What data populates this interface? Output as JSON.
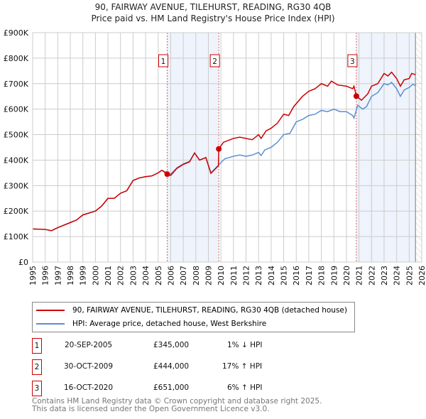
{
  "chart_data": {
    "type": "line",
    "title": "90, FAIRWAY AVENUE, TILEHURST, READING, RG30 4QB",
    "subtitle": "Price paid vs. HM Land Registry's House Price Index (HPI)",
    "xlim": [
      1995,
      2026
    ],
    "ylim": [
      0,
      900000
    ],
    "yticks": [
      {
        "v": 0,
        "label": "£0"
      },
      {
        "v": 100000,
        "label": "£100K"
      },
      {
        "v": 200000,
        "label": "£200K"
      },
      {
        "v": 300000,
        "label": "£300K"
      },
      {
        "v": 400000,
        "label": "£400K"
      },
      {
        "v": 500000,
        "label": "£500K"
      },
      {
        "v": 600000,
        "label": "£600K"
      },
      {
        "v": 700000,
        "label": "£700K"
      },
      {
        "v": 800000,
        "label": "£800K"
      },
      {
        "v": 900000,
        "label": "£900K"
      }
    ],
    "xticks": [
      "1995",
      "1996",
      "1997",
      "1998",
      "1999",
      "2000",
      "2001",
      "2002",
      "2003",
      "2004",
      "2005",
      "2006",
      "2007",
      "2008",
      "2009",
      "2010",
      "2011",
      "2012",
      "2013",
      "2014",
      "2015",
      "2016",
      "2017",
      "2018",
      "2019",
      "2020",
      "2021",
      "2022",
      "2023",
      "2024",
      "2025",
      "2026"
    ],
    "grid": true,
    "shaded_ranges": [
      [
        2005.72,
        2009.83
      ],
      [
        2020.79,
        2025.5
      ]
    ],
    "hatched_from": 2025.5,
    "series": [
      {
        "name": "90, FAIRWAY AVENUE, TILEHURST, READING, RG30 4QB (detached house)",
        "color": "#cc0000",
        "points": [
          [
            1995,
            130000
          ],
          [
            1996,
            128000
          ],
          [
            1996.5,
            123000
          ],
          [
            1997,
            135000
          ],
          [
            1998,
            155000
          ],
          [
            1998.5,
            165000
          ],
          [
            1999,
            185000
          ],
          [
            2000,
            200000
          ],
          [
            2000.5,
            220000
          ],
          [
            2001,
            250000
          ],
          [
            2001.5,
            250000
          ],
          [
            2002,
            270000
          ],
          [
            2002.5,
            280000
          ],
          [
            2003,
            320000
          ],
          [
            2003.5,
            330000
          ],
          [
            2004,
            335000
          ],
          [
            2004.5,
            338000
          ],
          [
            2005,
            350000
          ],
          [
            2005.3,
            360000
          ],
          [
            2005.72,
            345000
          ],
          [
            2006,
            340000
          ],
          [
            2006.5,
            368000
          ],
          [
            2007,
            383000
          ],
          [
            2007.5,
            393000
          ],
          [
            2007.9,
            428000
          ],
          [
            2008.3,
            400000
          ],
          [
            2008.8,
            410000
          ],
          [
            2009.2,
            348000
          ],
          [
            2009.8,
            378000
          ],
          [
            2009.83,
            444000
          ],
          [
            2010.2,
            470000
          ],
          [
            2011,
            485000
          ],
          [
            2011.5,
            490000
          ],
          [
            2012.5,
            480000
          ],
          [
            2013,
            500000
          ],
          [
            2013.2,
            485000
          ],
          [
            2013.6,
            515000
          ],
          [
            2014,
            525000
          ],
          [
            2014.5,
            545000
          ],
          [
            2015,
            580000
          ],
          [
            2015.4,
            575000
          ],
          [
            2015.8,
            610000
          ],
          [
            2016.5,
            650000
          ],
          [
            2017,
            670000
          ],
          [
            2017.5,
            680000
          ],
          [
            2018,
            700000
          ],
          [
            2018.5,
            690000
          ],
          [
            2018.8,
            710000
          ],
          [
            2019.3,
            695000
          ],
          [
            2020,
            690000
          ],
          [
            2020.5,
            680000
          ],
          [
            2020.6,
            690000
          ],
          [
            2020.79,
            651000
          ],
          [
            2021.2,
            635000
          ],
          [
            2021.7,
            660000
          ],
          [
            2022,
            690000
          ],
          [
            2022.5,
            700000
          ],
          [
            2023,
            740000
          ],
          [
            2023.3,
            730000
          ],
          [
            2023.6,
            745000
          ],
          [
            2024,
            720000
          ],
          [
            2024.3,
            690000
          ],
          [
            2024.6,
            715000
          ],
          [
            2025,
            720000
          ],
          [
            2025.2,
            740000
          ],
          [
            2025.5,
            735000
          ]
        ]
      },
      {
        "name": "HPI: Average price, detached house, West Berkshire",
        "color": "#5b8fd0",
        "points": [
          [
            1995,
            130000
          ],
          [
            1996,
            128000
          ],
          [
            1996.5,
            123000
          ],
          [
            1997,
            135000
          ],
          [
            1998,
            155000
          ],
          [
            1998.5,
            165000
          ],
          [
            1999,
            185000
          ],
          [
            2000,
            200000
          ],
          [
            2000.5,
            220000
          ],
          [
            2001,
            250000
          ],
          [
            2001.5,
            250000
          ],
          [
            2002,
            270000
          ],
          [
            2002.5,
            280000
          ],
          [
            2003,
            320000
          ],
          [
            2003.5,
            330000
          ],
          [
            2004,
            335000
          ],
          [
            2004.5,
            338000
          ],
          [
            2005,
            350000
          ],
          [
            2005.3,
            360000
          ],
          [
            2005.7,
            350000
          ],
          [
            2006,
            345000
          ],
          [
            2006.5,
            370000
          ],
          [
            2007,
            385000
          ],
          [
            2007.5,
            395000
          ],
          [
            2007.9,
            428000
          ],
          [
            2008.3,
            400000
          ],
          [
            2008.8,
            410000
          ],
          [
            2009.2,
            350000
          ],
          [
            2009.8,
            380000
          ],
          [
            2010.3,
            405000
          ],
          [
            2011,
            415000
          ],
          [
            2011.5,
            420000
          ],
          [
            2012,
            415000
          ],
          [
            2012.5,
            420000
          ],
          [
            2013,
            430000
          ],
          [
            2013.2,
            418000
          ],
          [
            2013.5,
            440000
          ],
          [
            2014,
            450000
          ],
          [
            2014.5,
            470000
          ],
          [
            2015,
            500000
          ],
          [
            2015.5,
            505000
          ],
          [
            2016,
            550000
          ],
          [
            2016.5,
            560000
          ],
          [
            2017,
            575000
          ],
          [
            2017.5,
            580000
          ],
          [
            2018,
            595000
          ],
          [
            2018.5,
            590000
          ],
          [
            2019,
            600000
          ],
          [
            2019.5,
            590000
          ],
          [
            2020,
            590000
          ],
          [
            2020.5,
            575000
          ],
          [
            2020.6,
            565000
          ],
          [
            2020.9,
            615000
          ],
          [
            2021.3,
            600000
          ],
          [
            2021.6,
            610000
          ],
          [
            2022,
            650000
          ],
          [
            2022.5,
            665000
          ],
          [
            2023,
            700000
          ],
          [
            2023.3,
            695000
          ],
          [
            2023.6,
            705000
          ],
          [
            2024,
            680000
          ],
          [
            2024.3,
            650000
          ],
          [
            2024.6,
            675000
          ],
          [
            2025,
            685000
          ],
          [
            2025.3,
            698000
          ],
          [
            2025.5,
            692000
          ]
        ]
      }
    ],
    "sales": [
      {
        "label": "1",
        "x": 2005.72,
        "y": 345000
      },
      {
        "label": "2",
        "x": 2009.83,
        "y": 444000
      },
      {
        "label": "3",
        "x": 2020.79,
        "y": 651000
      }
    ]
  },
  "legend": {
    "property": "90, FAIRWAY AVENUE, TILEHURST, READING, RG30 4QB (detached house)",
    "hpi": "HPI: Average price, detached house, West Berkshire"
  },
  "transactions": [
    {
      "num": "1",
      "date": "20-SEP-2005",
      "price": "£345,000",
      "hpi": "1% ↓ HPI"
    },
    {
      "num": "2",
      "date": "30-OCT-2009",
      "price": "£444,000",
      "hpi": "17% ↑ HPI"
    },
    {
      "num": "3",
      "date": "16-OCT-2020",
      "price": "£651,000",
      "hpi": "6% ↑ HPI"
    }
  ],
  "footer": {
    "line1": "Contains HM Land Registry data © Crown copyright and database right 2025.",
    "line2": "This data is licensed under the Open Government Licence v3.0."
  }
}
